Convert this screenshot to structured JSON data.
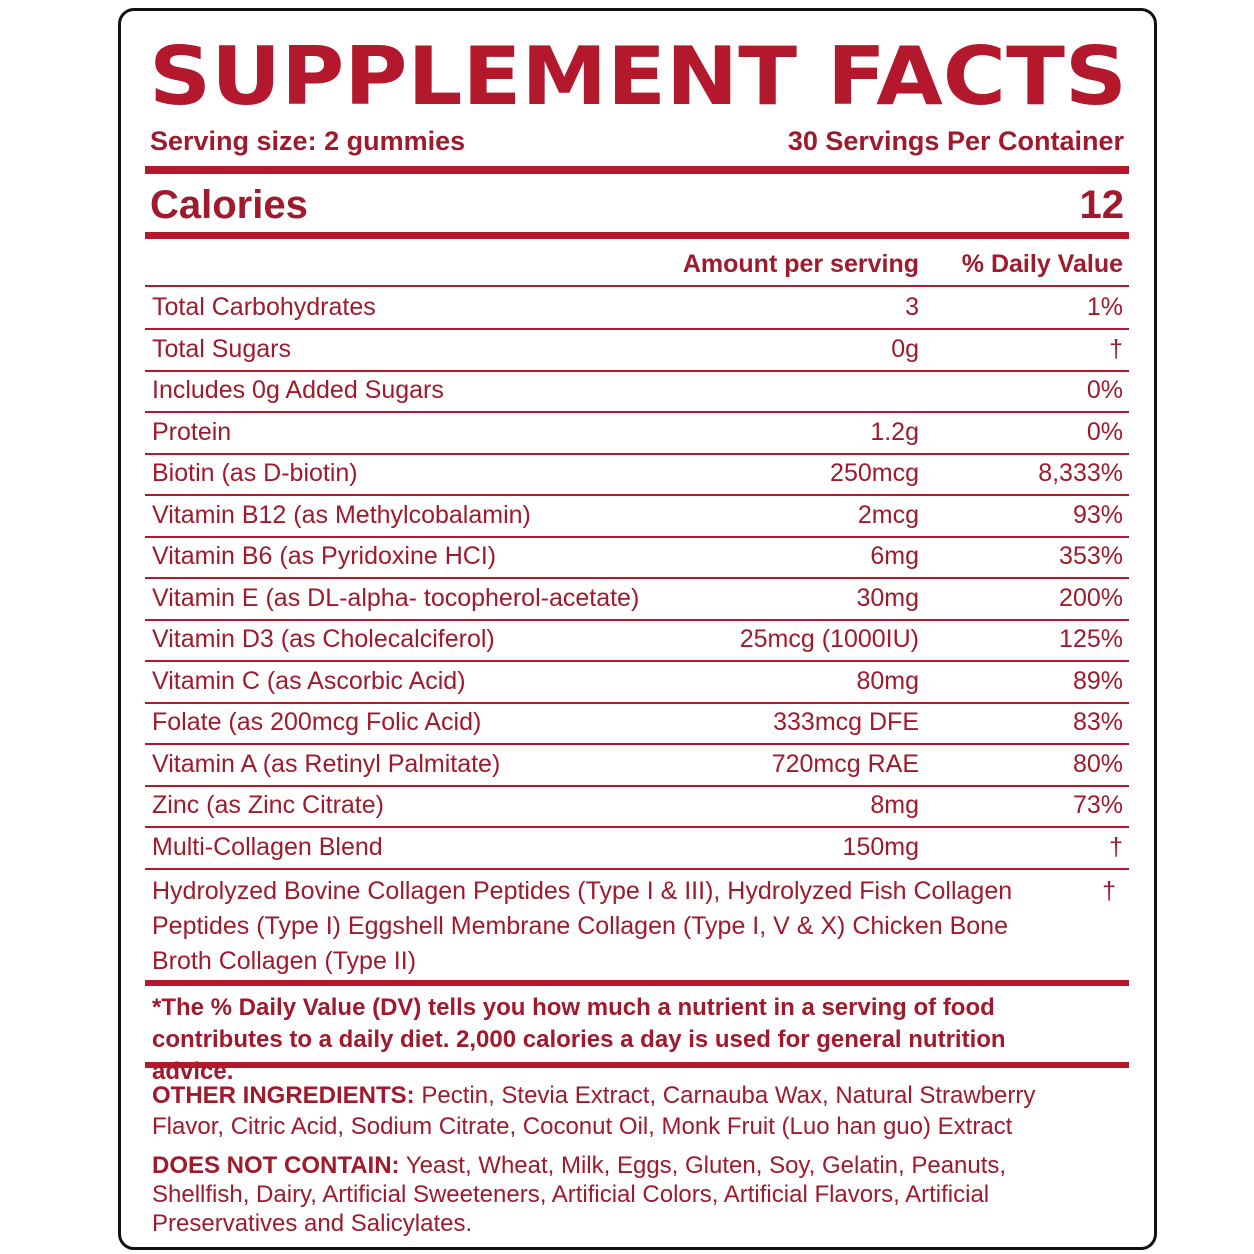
{
  "title": "SUPPLEMENT FACTS",
  "serving_size": "Serving size: 2 gummies",
  "servings_per_container": "30 Servings Per Container",
  "calories": {
    "label": "Calories",
    "value": 12
  },
  "table": {
    "headers": [
      "Amount per serving",
      "% Daily Value"
    ],
    "rows": [
      [
        "Total Carbohydrates",
        "3",
        "1%"
      ],
      [
        "Total Sugars",
        "0g",
        "†"
      ],
      [
        "Includes 0g Added Sugars",
        "",
        "0%"
      ],
      [
        "Protein",
        "1.2g",
        "0%"
      ],
      [
        "Biotin (as D-biotin)",
        "250mcg",
        "8,333%"
      ],
      [
        "Vitamin B12 (as Methylcobalamin)",
        "2mcg",
        "93%"
      ],
      [
        "Vitamin B6 (as Pyridoxine HCI)",
        "6mg",
        "353%"
      ],
      [
        "Vitamin E (as DL-alpha- tocopherol-acetate)",
        "30mg",
        "200%"
      ],
      [
        "Vitamin D3 (as Cholecalciferol)",
        "25mcg (1000IU)",
        "125%"
      ],
      [
        "Vitamin C (as Ascorbic Acid)",
        "80mg",
        "89%"
      ],
      [
        "Folate (as 200mcg Folic Acid)",
        "333mcg DFE",
        "83%"
      ],
      [
        "Vitamin A (as Retinyl Palmitate)",
        "720mcg RAE",
        "80%"
      ],
      [
        "Zinc (as Zinc Citrate)",
        "8mg",
        "73%"
      ],
      [
        "Multi-Collagen Blend",
        "150mg",
        "†"
      ]
    ],
    "blend": {
      "text": "Hydrolyzed Bovine Collagen Peptides (Type I & III), Hydrolyzed Fish Collagen Peptides (Type I) Eggshell Membrane Collagen (Type I, V & X) Chicken Bone Broth Collagen (Type II)",
      "dv": "†"
    }
  },
  "footnote": "*The % Daily Value (DV) tells you how much a nutrient in a serving of food contributes to a daily diet. 2,000 calories a day is used for general nutrition advice.",
  "other_ingredients": {
    "label": "OTHER INGREDIENTS:",
    "text": "Pectin, Stevia Extract, Carnauba Wax, Natural Strawberry Flavor, Citric Acid, Sodium Citrate, Coconut Oil, Monk Fruit (Luo han guo) Extract"
  },
  "does_not_contain": {
    "label": "DOES NOT CONTAIN:",
    "text": "Yeast, Wheat, Milk, Eggs, Gluten, Soy, Gelatin, Peanuts, Shellfish, Dairy, Artificial Sweeteners, Artificial Colors, Artificial Flavors, Artificial Preservatives and Salicylates."
  }
}
